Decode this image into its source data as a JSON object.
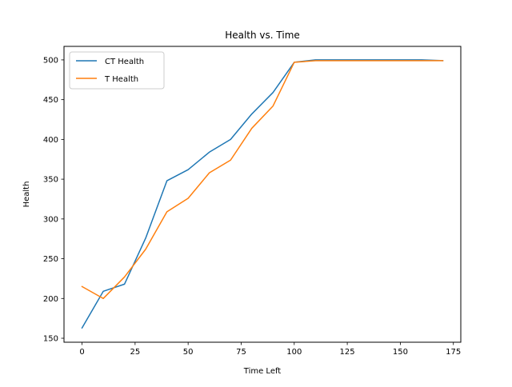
{
  "chart_data": {
    "type": "line",
    "title": "Health vs. Time",
    "xlabel": "Time Left",
    "ylabel": "Health",
    "xlim": [
      -8.5,
      178.5
    ],
    "ylim": [
      145,
      517
    ],
    "xticks": [
      0,
      25,
      50,
      75,
      100,
      125,
      150,
      175
    ],
    "yticks": [
      150,
      200,
      250,
      300,
      350,
      400,
      450,
      500
    ],
    "grid": false,
    "legend_position": "upper-left",
    "x": [
      0,
      10,
      20,
      30,
      40,
      50,
      60,
      70,
      80,
      90,
      100,
      110,
      120,
      130,
      140,
      150,
      160,
      170
    ],
    "series": [
      {
        "name": "CT Health",
        "color": "#1f77b4",
        "values": [
          163,
          209,
          218,
          276,
          348,
          362,
          384,
          400,
          432,
          459,
          497,
          500,
          500,
          500,
          500,
          500,
          500,
          499
        ]
      },
      {
        "name": "T Health",
        "color": "#ff7f0e",
        "values": [
          215,
          200,
          227,
          262,
          309,
          326,
          358,
          374,
          414,
          442,
          497,
          499,
          499,
          499,
          499,
          499,
          499,
          499
        ]
      }
    ]
  }
}
